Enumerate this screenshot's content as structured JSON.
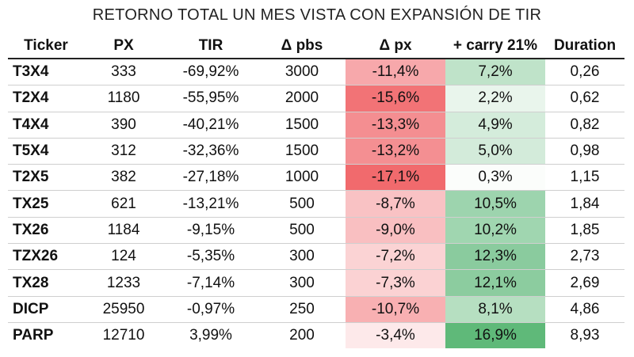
{
  "title": "RETORNO TOTAL UN MES VISTA CON EXPANSIÓN DE TIR",
  "headers": [
    "Ticker",
    "PX",
    "TIR",
    "Δ pbs",
    "Δ px",
    "+ carry 21%",
    "Duration"
  ],
  "rows": [
    {
      "ticker": "T3X4",
      "px": "333",
      "tir": "-69,92%",
      "dpbs": "3000",
      "dpx": "-11,4%",
      "carry": "7,2%",
      "duration": "0,26",
      "dpx_color": "#f7a8ab",
      "carry_color": "#bfe3c9"
    },
    {
      "ticker": "T2X4",
      "px": "1180",
      "tir": "-55,95%",
      "dpbs": "2000",
      "dpx": "-15,6%",
      "carry": "2,2%",
      "duration": "0,62",
      "dpx_color": "#f27376",
      "carry_color": "#e9f5ec"
    },
    {
      "ticker": "T4X4",
      "px": "390",
      "tir": "-40,21%",
      "dpbs": "1500",
      "dpx": "-13,3%",
      "carry": "4,9%",
      "duration": "0,82",
      "dpx_color": "#f48e91",
      "carry_color": "#d4ecdb"
    },
    {
      "ticker": "T5X4",
      "px": "312",
      "tir": "-32,36%",
      "dpbs": "1500",
      "dpx": "-13,2%",
      "carry": "5,0%",
      "duration": "0,98",
      "dpx_color": "#f48f92",
      "carry_color": "#d3ebda"
    },
    {
      "ticker": "T2X5",
      "px": "382",
      "tir": "-27,18%",
      "dpbs": "1000",
      "dpx": "-17,1%",
      "carry": "0,3%",
      "duration": "1,15",
      "dpx_color": "#f16a6d",
      "carry_color": "#fbfdfb"
    },
    {
      "ticker": "TX25",
      "px": "621",
      "tir": "-13,21%",
      "dpbs": "500",
      "dpx": "-8,7%",
      "carry": "10,5%",
      "duration": "1,84",
      "dpx_color": "#f9c2c4",
      "carry_color": "#9dd4ae"
    },
    {
      "ticker": "TX26",
      "px": "1184",
      "tir": "-9,15%",
      "dpbs": "500",
      "dpx": "-9,0%",
      "carry": "10,2%",
      "duration": "1,85",
      "dpx_color": "#f9bfc1",
      "carry_color": "#a0d6b0"
    },
    {
      "ticker": "TZX26",
      "px": "124",
      "tir": "-5,35%",
      "dpbs": "300",
      "dpx": "-7,2%",
      "carry": "12,3%",
      "duration": "2,73",
      "dpx_color": "#fbd3d4",
      "carry_color": "#8acb9e"
    },
    {
      "ticker": "TX28",
      "px": "1233",
      "tir": "-7,14%",
      "dpbs": "300",
      "dpx": "-7,3%",
      "carry": "12,1%",
      "duration": "2,69",
      "dpx_color": "#fbd2d3",
      "carry_color": "#8ccc9f"
    },
    {
      "ticker": "DICP",
      "px": "25950",
      "tir": "-0,97%",
      "dpbs": "250",
      "dpx": "-10,7%",
      "carry": "8,1%",
      "duration": "4,86",
      "dpx_color": "#f8b0b2",
      "carry_color": "#b6dfc1"
    },
    {
      "ticker": "PARP",
      "px": "12710",
      "tir": "3,99%",
      "dpbs": "200",
      "dpx": "-3,4%",
      "carry": "16,9%",
      "duration": "8,93",
      "dpx_color": "#fde9ea",
      "carry_color": "#5fb979"
    }
  ]
}
